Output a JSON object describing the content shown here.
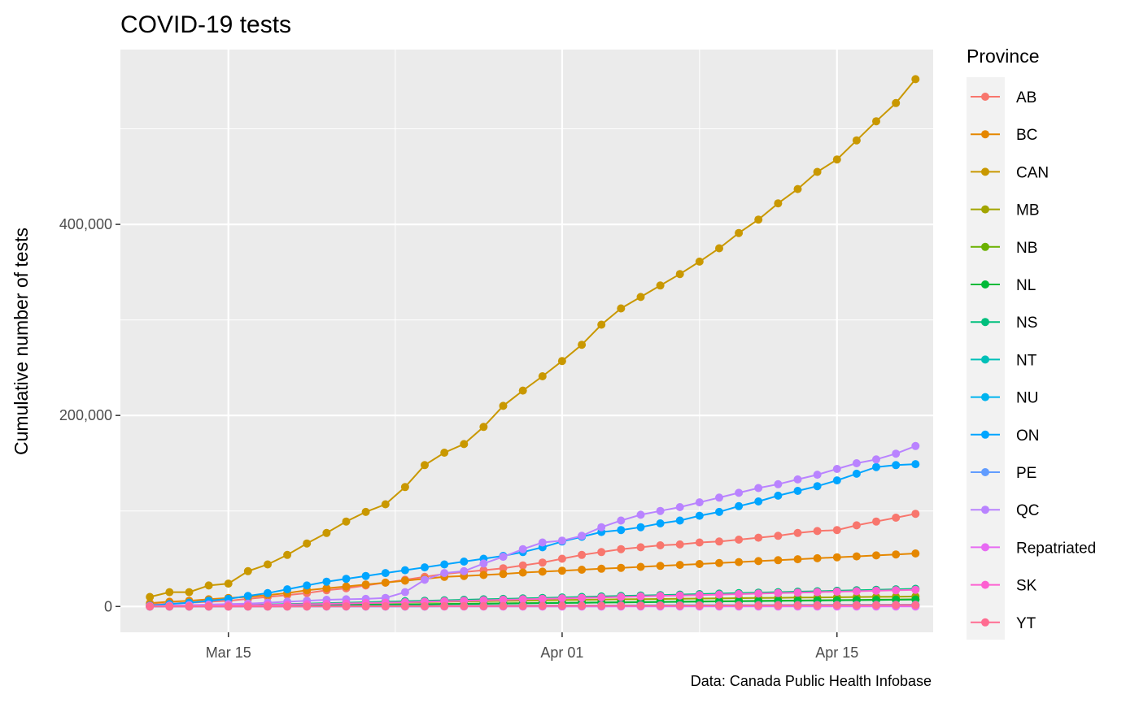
{
  "chart_data": {
    "type": "line",
    "title": "COVID-19 tests",
    "xlabel": "",
    "ylabel": "Cumulative number of tests",
    "caption": "Data: Canada Public Health Infobase",
    "legend_title": "Province",
    "legend_position": "right",
    "grid": true,
    "x_tick_labels": [
      "Mar 15",
      "Apr 01",
      "Apr 15"
    ],
    "y_tick_labels": [
      "0",
      "200,000",
      "400,000"
    ],
    "y_ticks": [
      0,
      200000,
      400000
    ],
    "ylim": [
      -27000,
      583000
    ],
    "xlim_day": [
      9.5,
      50.9
    ],
    "x_days": [
      11,
      12,
      13,
      14,
      15,
      16,
      17,
      18,
      19,
      20,
      21,
      22,
      23,
      24,
      25,
      26,
      27,
      28,
      29,
      30,
      31,
      32,
      33,
      34,
      35,
      36,
      37,
      38,
      39,
      40,
      41,
      42,
      43,
      44,
      45,
      46,
      47,
      48,
      49,
      50
    ],
    "x_dates": [
      "2020-03-11",
      "2020-03-12",
      "2020-03-13",
      "2020-03-14",
      "2020-03-15",
      "2020-03-16",
      "2020-03-17",
      "2020-03-18",
      "2020-03-19",
      "2020-03-20",
      "2020-03-21",
      "2020-03-22",
      "2020-03-23",
      "2020-03-24",
      "2020-03-25",
      "2020-03-26",
      "2020-03-27",
      "2020-03-28",
      "2020-03-29",
      "2020-03-30",
      "2020-03-31",
      "2020-04-01",
      "2020-04-02",
      "2020-04-03",
      "2020-04-04",
      "2020-04-05",
      "2020-04-06",
      "2020-04-07",
      "2020-04-08",
      "2020-04-09",
      "2020-04-10",
      "2020-04-11",
      "2020-04-12",
      "2020-04-13",
      "2020-04-14",
      "2020-04-15",
      "2020-04-16",
      "2020-04-17",
      "2020-04-18",
      "2020-04-19"
    ],
    "series": [
      {
        "name": "AB",
        "color": "#F8766D",
        "values": [
          2000,
          3000,
          4000,
          5000,
          6000,
          8000,
          10000,
          12000,
          14000,
          17000,
          19000,
          22000,
          25000,
          28000,
          31000,
          34000,
          36000,
          38000,
          40000,
          43000,
          46000,
          50000,
          54000,
          57000,
          60000,
          62000,
          64000,
          65000,
          67000,
          68000,
          70000,
          72000,
          74000,
          77000,
          79000,
          80000,
          85000,
          89000,
          93000,
          97000
        ]
      },
      {
        "name": "BC",
        "color": "#E58700",
        "values": [
          3500,
          5000,
          6000,
          7500,
          9000,
          10000,
          12000,
          14000,
          17000,
          19000,
          21000,
          23000,
          25000,
          27000,
          29000,
          31000,
          32000,
          33000,
          34000,
          35500,
          36500,
          37500,
          38500,
          39500,
          40500,
          41500,
          42500,
          43500,
          44500,
          45500,
          46500,
          47500,
          48500,
          49500,
          50500,
          51500,
          52500,
          53500,
          54500,
          55500
        ]
      },
      {
        "name": "CAN",
        "color": "#C99800",
        "values": [
          10000,
          15000,
          15000,
          22000,
          24000,
          37000,
          44000,
          54000,
          66000,
          77000,
          89000,
          99000,
          107000,
          125000,
          148000,
          161000,
          170000,
          188000,
          210000,
          226000,
          241000,
          257000,
          274000,
          295000,
          312000,
          324000,
          336000,
          348000,
          361000,
          375000,
          391000,
          405000,
          422000,
          437000,
          455000,
          468000,
          488000,
          508000,
          527000,
          552000
        ]
      },
      {
        "name": "MB",
        "color": "#A3A500",
        "values": [
          200,
          300,
          500,
          700,
          900,
          1200,
          1500,
          1800,
          2200,
          2600,
          3000,
          3400,
          3800,
          4200,
          4600,
          5000,
          5300,
          5600,
          5900,
          6200,
          6500,
          6800,
          7000,
          7200,
          7500,
          7700,
          7900,
          8100,
          8300,
          8500,
          8700,
          8900,
          9100,
          9300,
          9500,
          9700,
          9900,
          10100,
          10300,
          10500
        ]
      },
      {
        "name": "NB",
        "color": "#6BB100",
        "values": [
          100,
          200,
          300,
          400,
          500,
          700,
          900,
          1100,
          1300,
          1500,
          1700,
          1900,
          2100,
          2300,
          2500,
          2700,
          2900,
          3100,
          3300,
          3500,
          3700,
          3900,
          4100,
          4300,
          4500,
          4700,
          4900,
          5100,
          5300,
          5500,
          5700,
          5900,
          6100,
          6300,
          6500,
          6700,
          6900,
          7100,
          7300,
          7500
        ]
      },
      {
        "name": "NL",
        "color": "#00BA38",
        "values": [
          100,
          150,
          200,
          300,
          400,
          500,
          700,
          900,
          1100,
          1300,
          1500,
          1700,
          1900,
          2100,
          2300,
          2500,
          2700,
          2900,
          3100,
          3300,
          3500,
          3700,
          3900,
          4100,
          4300,
          4500,
          4700,
          4900,
          5100,
          5300,
          5500,
          5700,
          5900,
          6100,
          6300,
          6500,
          6700,
          6900,
          7100,
          7300
        ]
      },
      {
        "name": "NS",
        "color": "#00BF7D",
        "values": [
          300,
          500,
          700,
          1000,
          1300,
          1600,
          2000,
          2500,
          3000,
          3500,
          4000,
          4500,
          5000,
          5500,
          6000,
          6500,
          7000,
          7500,
          8000,
          8500,
          9000,
          9500,
          10000,
          10500,
          11000,
          11500,
          12000,
          12500,
          13000,
          13500,
          14000,
          14500,
          15000,
          15500,
          16000,
          16500,
          17000,
          17500,
          18000,
          18500
        ]
      },
      {
        "name": "NT",
        "color": "#00C0B8",
        "values": [
          0,
          0,
          0,
          50,
          100,
          150,
          200,
          250,
          300,
          350,
          400,
          450,
          500,
          550,
          600,
          650,
          700,
          750,
          800,
          850,
          900,
          950,
          1000,
          1050,
          1100,
          1150,
          1200,
          1250,
          1300,
          1350,
          1400,
          1450,
          1500,
          1550,
          1600,
          1650,
          1700,
          1750,
          1800,
          1850
        ]
      },
      {
        "name": "NU",
        "color": "#00B4EF",
        "values": [
          0,
          0,
          0,
          0,
          0,
          0,
          10,
          20,
          30,
          40,
          50,
          60,
          70,
          80,
          90,
          100,
          110,
          120,
          130,
          140,
          150,
          160,
          170,
          180,
          190,
          200,
          210,
          220,
          230,
          240,
          250,
          260,
          270,
          280,
          290,
          300,
          310,
          320,
          330,
          340
        ]
      },
      {
        "name": "ON",
        "color": "#00A5FF",
        "values": [
          1000,
          2500,
          4000,
          6000,
          8000,
          11000,
          14000,
          18000,
          22000,
          26000,
          29000,
          32000,
          35000,
          38000,
          41000,
          44000,
          47000,
          50000,
          53000,
          57000,
          62000,
          68000,
          73000,
          78000,
          80000,
          83000,
          87000,
          90000,
          95000,
          99000,
          105000,
          110000,
          116000,
          121000,
          126000,
          132000,
          139000,
          146000,
          148000,
          149000
        ]
      },
      {
        "name": "PE",
        "color": "#619CFF",
        "values": [
          0,
          0,
          50,
          100,
          150,
          200,
          250,
          300,
          350,
          400,
          450,
          500,
          550,
          600,
          650,
          700,
          750,
          800,
          850,
          900,
          950,
          1000,
          1050,
          1100,
          1150,
          1200,
          1250,
          1300,
          1350,
          1400,
          1450,
          1500,
          1550,
          1600,
          1650,
          1700,
          1750,
          1800,
          1850,
          1900
        ]
      },
      {
        "name": "QC",
        "color": "#B983FF",
        "values": [
          500,
          1000,
          1500,
          2000,
          2500,
          3000,
          4000,
          5000,
          6000,
          7000,
          7500,
          8000,
          9000,
          15000,
          28000,
          35000,
          37000,
          45000,
          52000,
          60000,
          67000,
          69000,
          74000,
          83000,
          90000,
          96000,
          100000,
          104000,
          109000,
          114000,
          119000,
          124000,
          128000,
          133000,
          138000,
          144000,
          150000,
          154000,
          160000,
          168000
        ]
      },
      {
        "name": "Repatriated",
        "color": "#E76BF3",
        "values": [
          0,
          0,
          0,
          0,
          0,
          0,
          0,
          0,
          0,
          0,
          0,
          0,
          0,
          0,
          0,
          0,
          0,
          0,
          0,
          0,
          0,
          0,
          0,
          0,
          0,
          0,
          0,
          0,
          0,
          0,
          0,
          0,
          0,
          0,
          0,
          0,
          0,
          0,
          0,
          0
        ]
      },
      {
        "name": "SK",
        "color": "#FD61D1",
        "values": [
          200,
          400,
          600,
          800,
          1000,
          1300,
          1600,
          2000,
          2400,
          2800,
          3200,
          3600,
          4000,
          4500,
          5000,
          5500,
          6000,
          6500,
          7000,
          7500,
          8000,
          8500,
          9000,
          9500,
          10000,
          10500,
          11000,
          11500,
          12000,
          12500,
          13000,
          13500,
          14000,
          14500,
          15000,
          15500,
          16000,
          16500,
          17000,
          17500
        ]
      },
      {
        "name": "YT",
        "color": "#FF6C91",
        "values": [
          0,
          0,
          0,
          0,
          0,
          0,
          0,
          0,
          50,
          100,
          150,
          200,
          250,
          300,
          350,
          400,
          450,
          500,
          550,
          600,
          650,
          700,
          750,
          800,
          850,
          900,
          950,
          1000,
          1050,
          1100,
          1150,
          1200,
          1250,
          1300,
          1350,
          1400,
          1450,
          1500,
          1550,
          1600
        ]
      }
    ]
  }
}
